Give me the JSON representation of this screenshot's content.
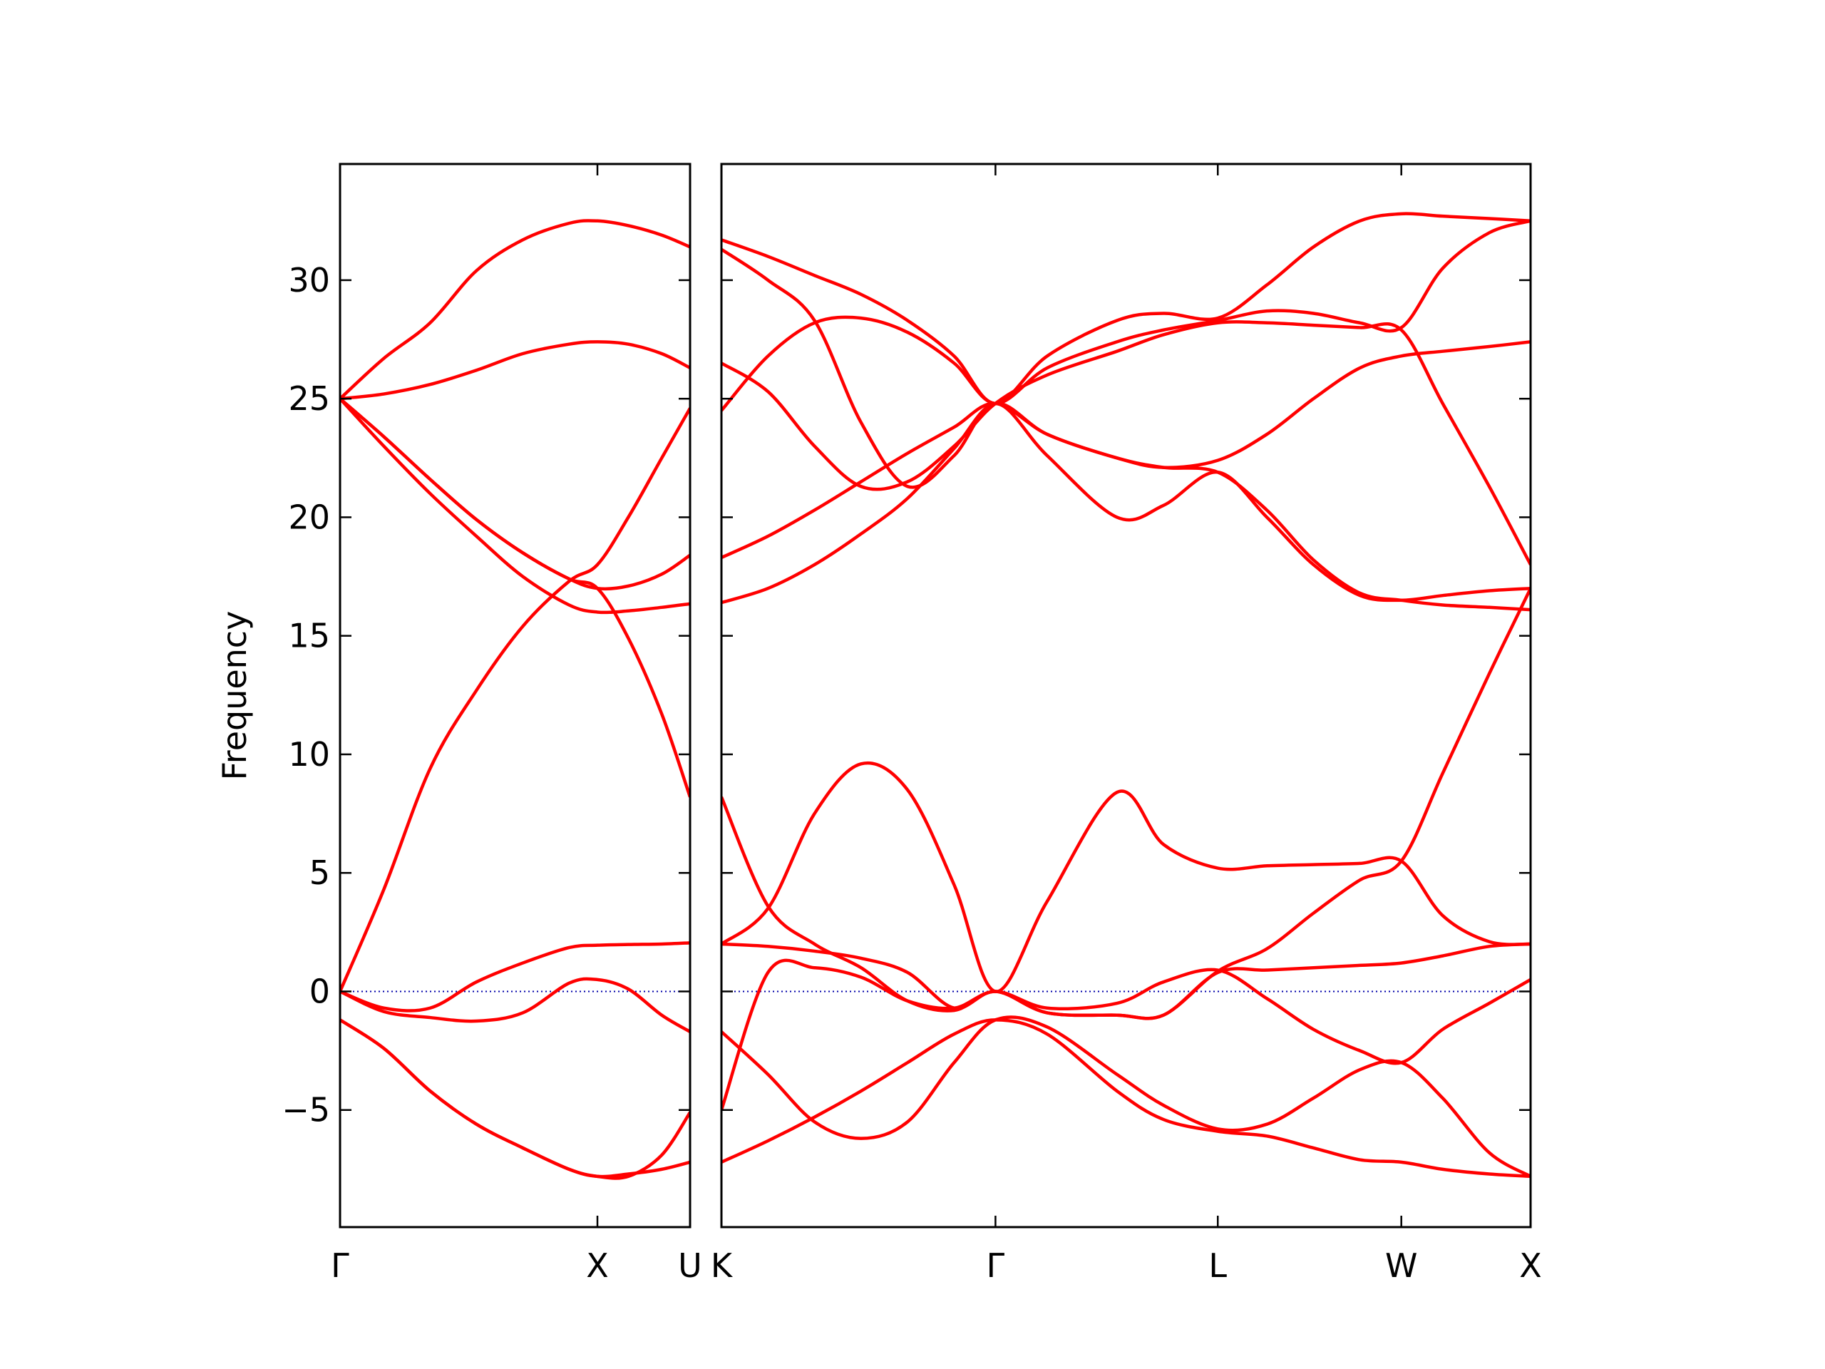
{
  "chart_data": [
    {
      "type": "line",
      "ylabel": "Frequency",
      "color": "#ff0000",
      "x": [
        0,
        0.17,
        0.35,
        0.53,
        0.71,
        0.89,
        1,
        1.12,
        1.25,
        1.36
      ],
      "xlim": [
        0,
        1.36
      ],
      "xticks": [
        {
          "value": 0,
          "label": "Γ"
        },
        {
          "value": 1,
          "label": "X"
        },
        {
          "value": 1.36,
          "label": "U"
        }
      ],
      "ylim": [
        -9.94,
        34.9
      ],
      "yticks": [
        {
          "value": -5,
          "label": "−5"
        },
        0,
        5,
        10,
        15,
        20,
        25,
        30
      ],
      "hline": {
        "value": 0,
        "color": "#0000aa"
      },
      "series": [
        {
          "values": [
            25,
            26.7,
            28.2,
            30.4,
            31.7,
            32.4,
            32.5,
            32.3,
            31.9,
            31.4
          ]
        },
        {
          "values": [
            25,
            25.2,
            25.6,
            26.2,
            26.9,
            27.3,
            27.4,
            27.3,
            26.9,
            26.3
          ]
        },
        {
          "values": [
            25,
            23.4,
            21.6,
            19.9,
            18.5,
            17.4,
            17.0,
            17.1,
            17.6,
            18.4
          ]
        },
        {
          "values": [
            25,
            23.0,
            21.0,
            19.2,
            17.5,
            16.3,
            16.0,
            16.05,
            16.2,
            16.35
          ]
        },
        {
          "values": [
            0,
            4.3,
            9.4,
            12.7,
            15.4,
            17.3,
            18.0,
            20.0,
            22.5,
            24.6
          ]
        },
        {
          "values": [
            25,
            23.4,
            21.6,
            19.9,
            18.5,
            17.4,
            17.0,
            14.9,
            11.7,
            8.2
          ]
        },
        {
          "values": [
            0,
            -0.7,
            -0.7,
            0.4,
            1.2,
            1.85,
            1.95,
            1.98,
            2.0,
            2.05
          ]
        },
        {
          "values": [
            0,
            -0.85,
            -1.1,
            -1.25,
            -0.9,
            0.35,
            0.5,
            0.1,
            -1.0,
            -1.7
          ]
        },
        {
          "values": [
            -1.2,
            -2.4,
            -4.2,
            -5.6,
            -6.6,
            -7.5,
            -7.8,
            -7.7,
            -7.5,
            -7.2
          ]
        },
        {
          "values": [
            -1.2,
            -2.4,
            -4.2,
            -5.6,
            -6.6,
            -7.5,
            -7.8,
            -7.8,
            -6.9,
            -5.1
          ]
        }
      ]
    },
    {
      "type": "line",
      "color": "#ff0000",
      "x": [
        1.36,
        1.54,
        1.72,
        1.9,
        2.08,
        2.26,
        2.42,
        2.62,
        2.89,
        3.07,
        3.28,
        3.47,
        3.65,
        3.83,
        3.99,
        4.15,
        4.33,
        4.49
      ],
      "xlim": [
        1.36,
        4.49
      ],
      "xticks": [
        {
          "value": 1.36,
          "label": "K"
        },
        {
          "value": 2.42,
          "label": "Γ"
        },
        {
          "value": 3.28,
          "label": "L"
        },
        {
          "value": 3.99,
          "label": "W"
        },
        {
          "value": 4.49,
          "label": "X"
        }
      ],
      "ylim": [
        -9.94,
        34.9
      ],
      "yticks": [
        -5,
        0,
        5,
        10,
        15,
        20,
        25,
        30
      ],
      "hline": {
        "value": 0,
        "color": "#0000aa"
      },
      "series": [
        {
          "values": [
            31.7,
            31.0,
            30.2,
            29.4,
            28.3,
            26.8,
            24.8,
            26.8,
            28.3,
            28.6,
            28.4,
            29.8,
            31.4,
            32.5,
            32.8,
            32.7,
            32.6,
            32.5
          ]
        },
        {
          "values": [
            31.3,
            30.0,
            28.3,
            24.0,
            21.3,
            22.6,
            24.8,
            22.6,
            20.0,
            20.5,
            21.9,
            20.0,
            18.0,
            16.7,
            16.5,
            16.7,
            16.9,
            17.0
          ]
        },
        {
          "values": [
            26.5,
            25.3,
            23.0,
            21.3,
            21.5,
            23.0,
            24.8,
            26.0,
            27.0,
            27.7,
            28.2,
            28.2,
            28.1,
            28.0,
            27.9,
            24.8,
            21.3,
            18.0
          ]
        },
        {
          "values": [
            24.5,
            26.8,
            28.2,
            28.4,
            27.8,
            26.5,
            24.8,
            26.3,
            27.4,
            27.9,
            28.3,
            28.7,
            28.6,
            28.2,
            28.0,
            30.5,
            32.0,
            32.5
          ]
        },
        {
          "values": [
            18.3,
            19.2,
            20.3,
            21.5,
            22.7,
            23.8,
            24.8,
            23.5,
            22.5,
            22.1,
            22.4,
            23.5,
            25.0,
            26.3,
            26.8,
            27.0,
            27.2,
            27.4
          ]
        },
        {
          "values": [
            16.4,
            17.0,
            18.0,
            19.3,
            20.8,
            22.9,
            24.8,
            23.5,
            22.5,
            22.1,
            21.9,
            20.3,
            18.2,
            16.8,
            16.5,
            16.3,
            16.2,
            16.1
          ]
        },
        {
          "values": [
            2.0,
            3.5,
            7.5,
            9.6,
            8.5,
            4.5,
            0,
            3.8,
            8.4,
            6.2,
            5.2,
            5.3,
            5.35,
            5.4,
            5.5,
            3.2,
            2.1,
            2.0
          ]
        },
        {
          "values": [
            2.0,
            1.9,
            1.7,
            1.4,
            0.8,
            -0.7,
            0,
            -0.9,
            -1.0,
            -1.0,
            0.8,
            0.9,
            1.0,
            1.1,
            1.2,
            1.5,
            1.9,
            2.0
          ]
        },
        {
          "values": [
            8.2,
            3.6,
            2.0,
            1.0,
            -0.4,
            -0.8,
            0,
            -0.9,
            -1.0,
            -1.0,
            0.85,
            1.8,
            3.3,
            4.7,
            5.5,
            9.2,
            13.4,
            17.0
          ]
        },
        {
          "values": [
            -5.0,
            0.8,
            1.0,
            0.6,
            -0.4,
            -0.7,
            0,
            -0.7,
            -0.5,
            0.4,
            0.9,
            -0.3,
            -1.6,
            -2.5,
            -3.0,
            -1.6,
            -0.5,
            0.5
          ]
        },
        {
          "values": [
            -1.7,
            -3.5,
            -5.5,
            -6.2,
            -5.5,
            -3.0,
            -1.2,
            -1.5,
            -3.5,
            -4.8,
            -5.8,
            -5.6,
            -4.5,
            -3.3,
            -3.0,
            -4.5,
            -6.8,
            -7.8
          ]
        },
        {
          "values": [
            -7.2,
            -6.3,
            -5.3,
            -4.2,
            -3.0,
            -1.8,
            -1.2,
            -1.8,
            -4.2,
            -5.4,
            -5.9,
            -6.1,
            -6.6,
            -7.1,
            -7.2,
            -7.5,
            -7.7,
            -7.8
          ]
        }
      ]
    }
  ]
}
